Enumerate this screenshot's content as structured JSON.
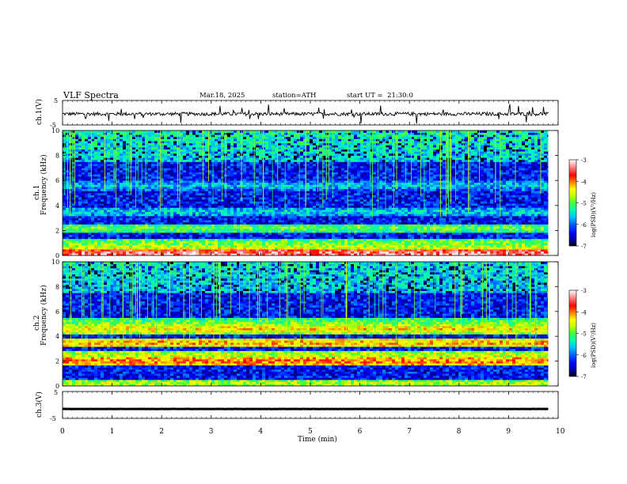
{
  "header": {
    "title": "VLF Spectra",
    "date": "Mar.18, 2025",
    "station": "station=ATH",
    "start": "start UT =  21:30:0"
  },
  "axes": {
    "x_label": "Time (min)",
    "x_ticks": [
      "0",
      "1",
      "2",
      "3",
      "4",
      "5",
      "6",
      "7",
      "8",
      "9",
      "10"
    ],
    "freq_ticks": [
      "0",
      "2",
      "4",
      "6",
      "8",
      "10"
    ],
    "ch1_wave_label": "ch.1(V)",
    "ch3_wave_label": "ch.3(V)",
    "ch1_spec_label": "ch.1",
    "ch2_spec_label": "ch.2",
    "freq_label": "Frequency (kHz)",
    "volt_ticks": [
      "5",
      "-5"
    ],
    "colorbar_label": "log(PSD)(V²/Hz)",
    "colorbar_ticks": [
      "-3",
      "-4",
      "-5",
      "-6",
      "-7"
    ]
  },
  "colors": {
    "colormap": [
      "#000000",
      "#000090",
      "#0000ff",
      "#0060ff",
      "#00c0ff",
      "#00ffb0",
      "#40ff40",
      "#c0ff00",
      "#ffff00",
      "#ff8000",
      "#ff0000",
      "#ff9090",
      "#ffffff"
    ]
  },
  "chart_data": [
    {
      "type": "line",
      "panel": "ch1_waveform",
      "ylabel": "ch.1(V)",
      "xlim": [
        0,
        10
      ],
      "ylim": [
        -5,
        5
      ],
      "data_extent_min": [
        0,
        9.8
      ],
      "baseline_v": -0.5,
      "note_values": "noisy signal around baseline with spikes"
    },
    {
      "type": "heatmap",
      "panel": "ch1_spectrogram",
      "xlabel": "Time (min)",
      "ylabel": "Frequency (kHz)",
      "xlim": [
        0,
        10
      ],
      "ylim": [
        0,
        10
      ],
      "data_extent_min": [
        0,
        9.8
      ],
      "colorbar_range": [
        -7,
        -3
      ],
      "colorbar_label": "log(PSD)(V²/Hz)",
      "bands_khz": [
        {
          "f": 0.1,
          "level": -3.3
        },
        {
          "f": 0.6,
          "level": -4.5
        },
        {
          "f": 1.0,
          "level": -4.8
        },
        {
          "f": 2.2,
          "level": -4.9
        },
        {
          "f": 3.5,
          "level": -5.5
        },
        {
          "f": 5.6,
          "level": -5.6
        }
      ],
      "upper_band_khz": [
        7.5,
        10
      ],
      "upper_band_level": -5.2
    },
    {
      "type": "heatmap",
      "panel": "ch2_spectrogram",
      "xlabel": "Time (min)",
      "ylabel": "Frequency (kHz)",
      "xlim": [
        0,
        10
      ],
      "ylim": [
        0,
        10
      ],
      "data_extent_min": [
        0,
        9.8
      ],
      "colorbar_range": [
        -7,
        -3
      ],
      "colorbar_label": "log(PSD)(V²/Hz)",
      "bands_khz": [
        {
          "f": 0.2,
          "level": -4.6
        },
        {
          "f": 2.0,
          "level": -3.9
        },
        {
          "f": 2.5,
          "level": -4.5
        },
        {
          "f": 3.5,
          "level": -4.1
        },
        {
          "f": 4.6,
          "level": -4.3
        },
        {
          "f": 5.1,
          "level": -4.9
        }
      ],
      "upper_band_khz": [
        7.5,
        10
      ],
      "upper_band_level": -5.3
    },
    {
      "type": "line",
      "panel": "ch3_waveform",
      "ylabel": "ch.3(V)",
      "xlim": [
        0,
        10
      ],
      "ylim": [
        -5,
        5
      ],
      "data_extent_min": [
        0,
        9.8
      ],
      "baseline_v": -1.5,
      "note_values": "flat thick trace"
    }
  ]
}
